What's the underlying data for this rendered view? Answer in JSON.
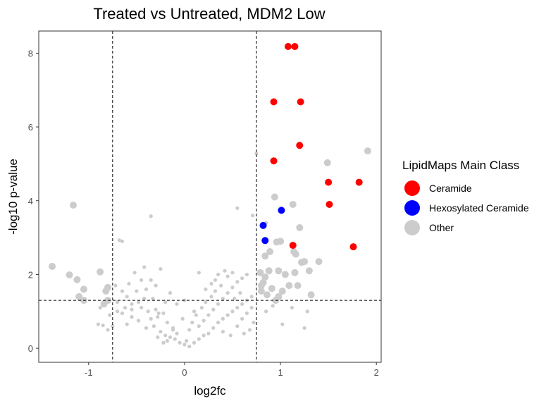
{
  "chart_data": {
    "type": "scatter",
    "title": "Treated vs Untreated, MDM2 Low",
    "xlabel": "log2fc",
    "ylabel": "-log10 p-value",
    "xlim": [
      -1.52,
      2.05
    ],
    "ylim": [
      -0.38,
      8.6
    ],
    "x_ticks": [
      -1,
      0,
      1,
      2
    ],
    "y_ticks": [
      0,
      2,
      4,
      6,
      8
    ],
    "grid": false,
    "thresholds": {
      "log2fc": [
        -0.75,
        0.75
      ],
      "neg_log10_p": 1.3
    },
    "legend": {
      "title": "LipidMaps Main Class",
      "position": "right",
      "entries": [
        {
          "label": "Ceramide",
          "color": "#ff0000"
        },
        {
          "label": "Hexosylated Ceramide",
          "color": "#0000ff"
        },
        {
          "label": "Other",
          "color": "#cccccc"
        }
      ]
    },
    "series": [
      {
        "name": "Ceramide",
        "color": "#ff0000",
        "points": [
          [
            1.08,
            8.18
          ],
          [
            1.15,
            8.18
          ],
          [
            0.93,
            6.68
          ],
          [
            1.21,
            6.68
          ],
          [
            1.2,
            5.5
          ],
          [
            0.93,
            5.08
          ],
          [
            1.5,
            4.5
          ],
          [
            1.82,
            4.5
          ],
          [
            1.51,
            3.9
          ],
          [
            1.13,
            2.79
          ],
          [
            1.76,
            2.75
          ]
        ]
      },
      {
        "name": "Hexosylated Ceramide",
        "color": "#0000ff",
        "points": [
          [
            1.01,
            3.74
          ],
          [
            0.82,
            3.33
          ],
          [
            0.84,
            2.92
          ]
        ]
      },
      {
        "name": "Other",
        "color": "#cccccc",
        "large_points": [
          [
            -1.16,
            3.88
          ],
          [
            -1.38,
            2.22
          ],
          [
            -1.2,
            1.99
          ],
          [
            -1.12,
            1.86
          ],
          [
            -0.88,
            2.07
          ],
          [
            -1.05,
            1.6
          ],
          [
            -0.8,
            1.65
          ],
          [
            -0.82,
            1.55
          ],
          [
            -1.1,
            1.4
          ],
          [
            -1.05,
            1.3
          ],
          [
            -0.8,
            1.3
          ],
          [
            -0.84,
            1.2
          ],
          [
            0.84,
            2.5
          ],
          [
            0.89,
            2.62
          ],
          [
            1.14,
            2.62
          ],
          [
            0.96,
            2.88
          ],
          [
            1.0,
            2.9
          ],
          [
            1.2,
            3.27
          ],
          [
            1.13,
            3.9
          ],
          [
            0.94,
            4.1
          ],
          [
            1.49,
            5.03
          ],
          [
            1.91,
            5.35
          ],
          [
            0.79,
            2.05
          ],
          [
            0.84,
            1.93
          ],
          [
            0.82,
            1.78
          ],
          [
            0.8,
            1.7
          ],
          [
            0.8,
            1.55
          ],
          [
            0.86,
            1.45
          ],
          [
            0.88,
            2.1
          ],
          [
            0.98,
            2.1
          ],
          [
            1.05,
            2.0
          ],
          [
            1.15,
            2.05
          ],
          [
            1.09,
            1.7
          ],
          [
            1.18,
            1.7
          ],
          [
            1.22,
            2.33
          ],
          [
            1.25,
            2.35
          ],
          [
            1.16,
            2.55
          ],
          [
            1.3,
            2.1
          ],
          [
            1.4,
            2.35
          ],
          [
            1.32,
            1.45
          ],
          [
            0.98,
            1.4
          ],
          [
            0.91,
            1.62
          ],
          [
            0.95,
            1.3
          ],
          [
            1.02,
            1.55
          ]
        ],
        "small_points": [
          [
            -0.35,
            3.58
          ],
          [
            0.55,
            3.8
          ],
          [
            0.71,
            3.6
          ],
          [
            0.85,
            3.4
          ],
          [
            -0.68,
            2.93
          ],
          [
            -0.65,
            2.9
          ],
          [
            -0.25,
            2.15
          ],
          [
            -0.42,
            2.2
          ],
          [
            -0.52,
            2.05
          ],
          [
            -0.45,
            1.85
          ],
          [
            -0.35,
            1.85
          ],
          [
            -0.3,
            1.7
          ],
          [
            -0.4,
            1.6
          ],
          [
            -0.5,
            1.55
          ],
          [
            -0.6,
            1.4
          ],
          [
            -0.7,
            1.25
          ],
          [
            -0.55,
            1.2
          ],
          [
            -0.45,
            1.1
          ],
          [
            -0.38,
            1.0
          ],
          [
            -0.3,
            1.05
          ],
          [
            -0.22,
            0.95
          ],
          [
            -0.65,
            0.95
          ],
          [
            -0.55,
            0.85
          ],
          [
            -0.48,
            0.75
          ],
          [
            -0.6,
            0.65
          ],
          [
            -0.75,
            0.6
          ],
          [
            -0.85,
            0.62
          ],
          [
            -0.4,
            0.55
          ],
          [
            -0.32,
            0.6
          ],
          [
            -0.25,
            0.45
          ],
          [
            -0.2,
            0.35
          ],
          [
            -0.28,
            0.3
          ],
          [
            -0.15,
            0.3
          ],
          [
            -0.1,
            0.25
          ],
          [
            -0.05,
            0.15
          ],
          [
            0.0,
            0.1
          ],
          [
            0.05,
            0.05
          ],
          [
            0.02,
            0.2
          ],
          [
            -0.08,
            0.4
          ],
          [
            -0.12,
            0.55
          ],
          [
            -0.18,
            0.2
          ],
          [
            -0.22,
            0.15
          ],
          [
            0.1,
            0.15
          ],
          [
            0.15,
            0.25
          ],
          [
            0.2,
            0.35
          ],
          [
            0.25,
            0.4
          ],
          [
            0.3,
            0.55
          ],
          [
            0.35,
            0.7
          ],
          [
            0.4,
            0.8
          ],
          [
            0.45,
            0.9
          ],
          [
            0.5,
            1.0
          ],
          [
            0.55,
            1.1
          ],
          [
            0.6,
            1.2
          ],
          [
            0.65,
            1.3
          ],
          [
            0.7,
            1.4
          ],
          [
            0.3,
            1.05
          ],
          [
            0.25,
            0.9
          ],
          [
            0.2,
            0.75
          ],
          [
            0.15,
            0.6
          ],
          [
            0.35,
            1.2
          ],
          [
            0.4,
            1.35
          ],
          [
            0.45,
            1.5
          ],
          [
            0.5,
            1.65
          ],
          [
            0.55,
            1.8
          ],
          [
            0.6,
            1.9
          ],
          [
            0.65,
            2.0
          ],
          [
            0.5,
            2.05
          ],
          [
            0.45,
            1.95
          ],
          [
            0.38,
            1.7
          ],
          [
            0.32,
            1.55
          ],
          [
            0.28,
            1.4
          ],
          [
            0.22,
            1.25
          ],
          [
            0.18,
            1.1
          ],
          [
            0.12,
            0.9
          ],
          [
            0.08,
            0.7
          ],
          [
            0.05,
            0.5
          ],
          [
            0.55,
            0.6
          ],
          [
            0.6,
            0.8
          ],
          [
            0.65,
            0.95
          ],
          [
            0.7,
            1.1
          ],
          [
            0.72,
            0.7
          ],
          [
            0.68,
            0.5
          ],
          [
            0.62,
            0.4
          ],
          [
            0.48,
            0.35
          ],
          [
            0.4,
            0.45
          ],
          [
            -0.42,
            1.35
          ],
          [
            -0.48,
            1.25
          ],
          [
            -0.55,
            1.05
          ],
          [
            -0.62,
            1.1
          ],
          [
            -0.7,
            1.0
          ],
          [
            -0.78,
            0.9
          ],
          [
            -0.35,
            0.8
          ],
          [
            -0.28,
            0.85
          ],
          [
            -0.18,
            0.7
          ],
          [
            -0.12,
            0.5
          ],
          [
            -0.65,
            1.55
          ],
          [
            -0.72,
            1.7
          ],
          [
            -0.58,
            1.75
          ],
          [
            0.15,
            2.05
          ],
          [
            0.35,
            2.0
          ],
          [
            1.02,
            0.65
          ],
          [
            1.25,
            0.55
          ],
          [
            1.28,
            1.0
          ],
          [
            1.12,
            1.1
          ],
          [
            0.85,
            1.0
          ],
          [
            0.92,
            1.15
          ],
          [
            -0.08,
            1.2
          ],
          [
            0.0,
            1.3
          ],
          [
            -0.02,
            0.8
          ],
          [
            0.1,
            1.0
          ],
          [
            -0.9,
            0.65
          ],
          [
            -0.88,
            1.1
          ],
          [
            -0.8,
            0.5
          ],
          [
            0.75,
            5.28
          ],
          [
            0.32,
            1.85
          ],
          [
            0.42,
            2.1
          ],
          [
            -0.15,
            1.5
          ],
          [
            -0.2,
            1.25
          ],
          [
            0.22,
            1.6
          ],
          [
            0.28,
            1.75
          ],
          [
            -0.33,
            1.35
          ],
          [
            -0.27,
            0.95
          ],
          [
            0.58,
            1.5
          ],
          [
            0.52,
            1.35
          ]
        ]
      }
    ]
  }
}
